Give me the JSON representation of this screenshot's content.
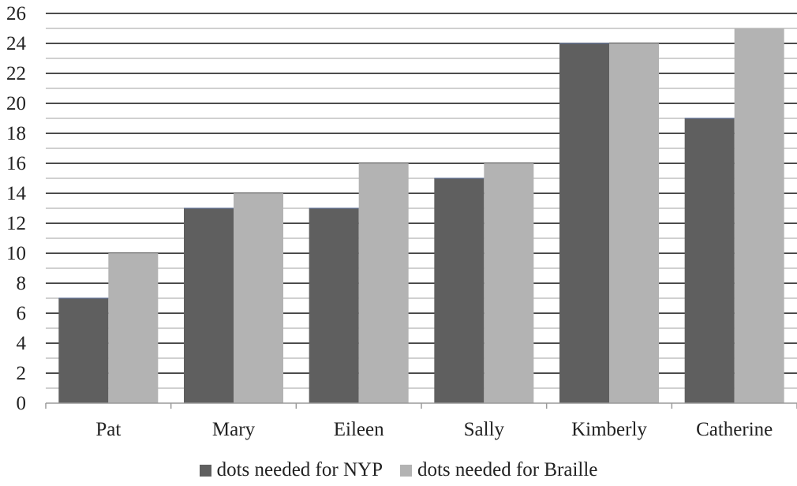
{
  "chart_data": {
    "type": "bar",
    "title": "",
    "xlabel": "",
    "ylabel": "",
    "categories": [
      "Pat",
      "Mary",
      "Eileen",
      "Sally",
      "Kimberly",
      "Catherine"
    ],
    "series": [
      {
        "name": "dots needed for NYP",
        "values": [
          7,
          13,
          13,
          15,
          24,
          19
        ],
        "color": "#5f5f5f"
      },
      {
        "name": "dots needed for Braille",
        "values": [
          10,
          14,
          16,
          16,
          24,
          25
        ],
        "color": "#b3b3b3"
      }
    ],
    "ylim": [
      0,
      26
    ],
    "yticks": [
      0,
      2,
      4,
      6,
      8,
      10,
      12,
      14,
      16,
      18,
      20,
      22,
      24,
      26
    ],
    "grid": true,
    "legend_position": "bottom"
  }
}
